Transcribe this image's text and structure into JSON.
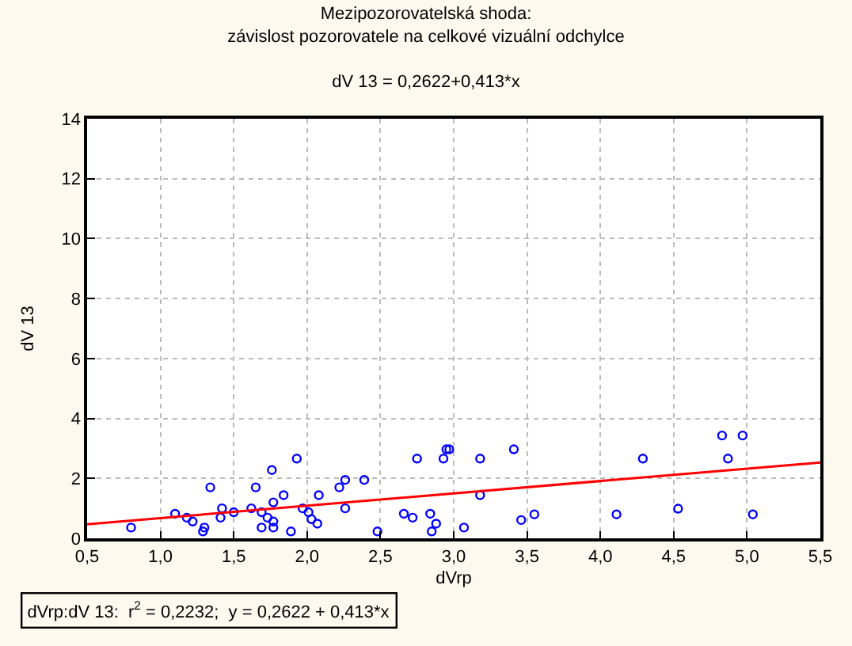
{
  "chart_data": {
    "type": "scatter",
    "title": "Mezipozorovatelská shoda:\nzávislost pozorovatele na celkové vizuální odchylce",
    "subtitle": "dV 13 = 0,2622+0,413*x",
    "xlabel": "dVrp",
    "ylabel": "dV 13",
    "annotations": [
      "dVrp:dV 13:  r$^{2}$ = 0,2232;  y = 0,2622 + 0,413*x"
    ],
    "series": [
      {
        "color": "#0000ff",
        "marker": "circle",
        "x": [
          0.8,
          1.1,
          1.18,
          1.22,
          1.29,
          1.3,
          1.34,
          1.41,
          1.42,
          1.5,
          1.62,
          1.65,
          1.69,
          1.69,
          1.73,
          1.76,
          1.77,
          1.77,
          1.77,
          1.84,
          1.89,
          1.93,
          1.97,
          2.01,
          2.03,
          2.07,
          2.08,
          2.22,
          2.26,
          2.26,
          2.39,
          2.48,
          2.66,
          2.72,
          2.75,
          2.84,
          2.85,
          2.88,
          2.93,
          2.95,
          2.97,
          3.07,
          3.18,
          3.18,
          3.41,
          3.46,
          3.55,
          4.11,
          4.29,
          4.53,
          4.83,
          4.87,
          4.97,
          5.04
        ],
        "values": [
          0.36,
          0.82,
          0.69,
          0.56,
          0.23,
          0.36,
          1.7,
          0.69,
          1.0,
          0.87,
          1.0,
          1.7,
          0.87,
          0.36,
          0.69,
          2.28,
          1.2,
          0.56,
          0.36,
          1.44,
          0.23,
          2.66,
          1.0,
          0.87,
          0.64,
          0.49,
          1.44,
          1.7,
          1.95,
          1.0,
          1.95,
          0.23,
          0.82,
          0.69,
          2.66,
          0.82,
          0.23,
          0.49,
          2.66,
          2.97,
          2.97,
          0.36,
          2.66,
          1.44,
          2.97,
          0.61,
          0.8,
          0.8,
          2.66,
          0.99,
          3.43,
          2.66,
          3.43,
          0.8
        ]
      },
      {
        "type": "line",
        "color": "#ff0000",
        "marker": "none",
        "line_style": "solid",
        "x": [
          0.5,
          5.5
        ],
        "values": [
          0.47,
          2.53
        ]
      }
    ],
    "xlim": [
      0.5,
      5.5
    ],
    "xticks": [
      {
        "value": 0.5,
        "label": "0,5"
      },
      {
        "value": 1.0,
        "label": "1,0"
      },
      {
        "value": 1.5,
        "label": "1,5"
      },
      {
        "value": 2.0,
        "label": "2,0"
      },
      {
        "value": 2.5,
        "label": "2,5"
      },
      {
        "value": 3.0,
        "label": "3,0"
      },
      {
        "value": 3.5,
        "label": "3,5"
      },
      {
        "value": 4.0,
        "label": "4,0"
      },
      {
        "value": 4.5,
        "label": "4,5"
      },
      {
        "value": 5.0,
        "label": "5,0"
      },
      {
        "value": 5.5,
        "label": "5,5"
      }
    ],
    "ylim": [
      0,
      14
    ],
    "yticks": [
      0,
      2,
      4,
      6,
      8,
      10,
      12,
      14
    ],
    "grid": true
  }
}
